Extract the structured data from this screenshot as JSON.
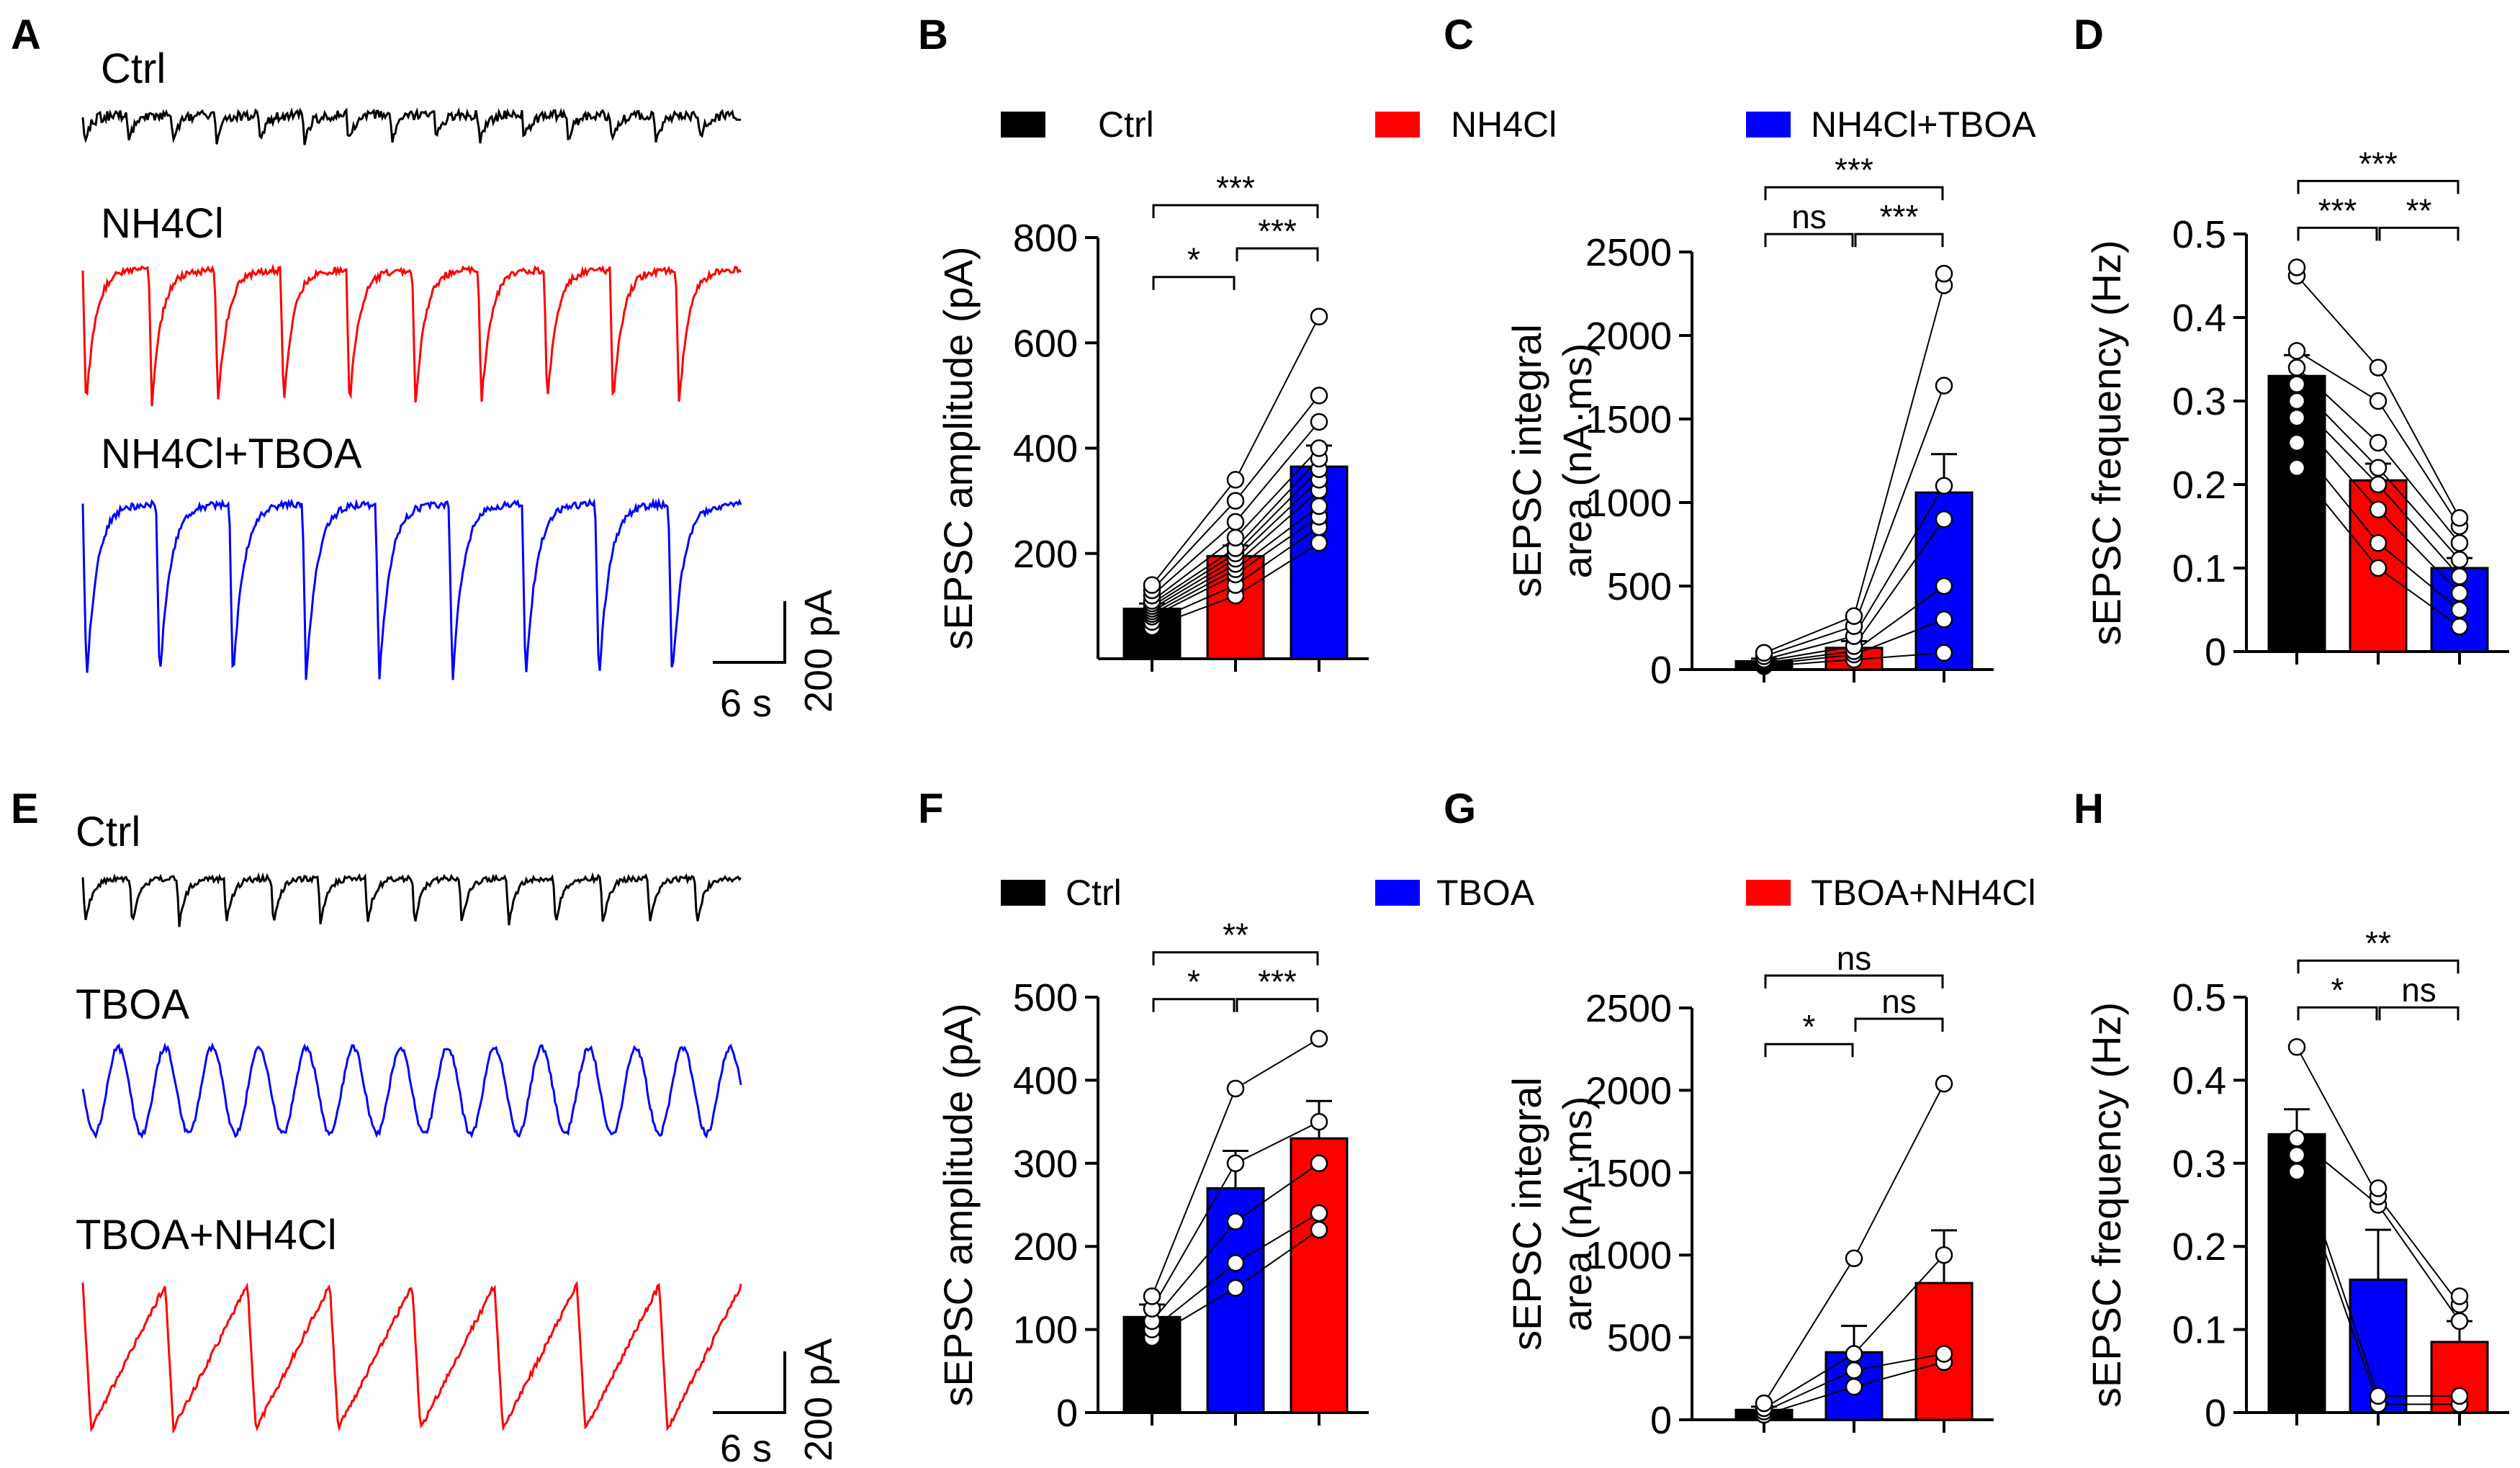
{
  "panel_labels": {
    "A": "A",
    "B": "B",
    "C": "C",
    "D": "D",
    "E": "E",
    "F": "F",
    "G": "G",
    "H": "H"
  },
  "colors": {
    "ctrl": "#000000",
    "nh4cl": "#ff0000",
    "tboa": "#0000ff"
  },
  "legend_top": [
    {
      "label": "Ctrl",
      "color": "#000000"
    },
    {
      "label": "NH4Cl",
      "color": "#ff0000"
    },
    {
      "label": "NH4Cl+TBOA",
      "color": "#0000ff"
    }
  ],
  "legend_bottom": [
    {
      "label": "Ctrl",
      "color": "#000000"
    },
    {
      "label": "TBOA",
      "color": "#0000ff"
    },
    {
      "label": "TBOA+NH4Cl",
      "color": "#ff0000"
    }
  ],
  "traces_top": {
    "labels": [
      "Ctrl",
      "NH4Cl",
      "NH4Cl+TBOA"
    ],
    "colors": [
      "#000000",
      "#ff0000",
      "#0000ff"
    ],
    "scale_time": "6 s",
    "scale_current": "200 pA"
  },
  "traces_bottom": {
    "labels": [
      "Ctrl",
      "TBOA",
      "TBOA+NH4Cl"
    ],
    "colors": [
      "#000000",
      "#0000ff",
      "#ff0000"
    ],
    "scale_time": "6 s",
    "scale_current": "200 pA"
  },
  "chart_data": [
    {
      "id": "B",
      "type": "bar",
      "ylabel": "sEPSC amplitude (pA)",
      "ylim": [
        0,
        800
      ],
      "yticks": [
        200,
        400,
        600,
        800
      ],
      "categories": [
        "Ctrl",
        "NH4Cl",
        "NH4Cl+TBOA"
      ],
      "values": [
        95,
        195,
        365
      ],
      "errors": [
        10,
        20,
        40
      ],
      "colors": [
        "#000000",
        "#ff0000",
        "#0000ff"
      ],
      "points": [
        [
          60,
          70,
          80,
          85,
          90,
          95,
          100,
          105,
          110,
          120,
          130,
          140
        ],
        [
          120,
          140,
          160,
          170,
          180,
          190,
          200,
          210,
          230,
          260,
          300,
          340
        ],
        [
          220,
          250,
          270,
          290,
          320,
          340,
          360,
          380,
          400,
          450,
          500,
          650
        ]
      ],
      "sig": [
        {
          "pair": [
            0,
            1
          ],
          "label": "*"
        },
        {
          "pair": [
            1,
            2
          ],
          "label": "***"
        },
        {
          "pair": [
            0,
            2
          ],
          "label": "***"
        }
      ]
    },
    {
      "id": "C",
      "type": "bar",
      "ylabel": "sEPSC integral area (nA·ms)",
      "ylim": [
        0,
        2500
      ],
      "yticks": [
        0,
        500,
        1000,
        1500,
        2000,
        2500
      ],
      "categories": [
        "Ctrl",
        "NH4Cl",
        "NH4Cl+TBOA"
      ],
      "values": [
        50,
        130,
        1060
      ],
      "errors": [
        15,
        40,
        230
      ],
      "colors": [
        "#000000",
        "#ff0000",
        "#0000ff"
      ],
      "points": [
        [
          20,
          30,
          40,
          50,
          60,
          80,
          100
        ],
        [
          60,
          90,
          110,
          140,
          200,
          260,
          320
        ],
        [
          100,
          300,
          500,
          900,
          1100,
          1700,
          2300,
          2370
        ]
      ],
      "sig": [
        {
          "pair": [
            0,
            1
          ],
          "label": "ns"
        },
        {
          "pair": [
            1,
            2
          ],
          "label": "***"
        },
        {
          "pair": [
            0,
            2
          ],
          "label": "***"
        }
      ]
    },
    {
      "id": "D",
      "type": "bar",
      "ylabel": "sEPSC frequency (Hz)",
      "ylim": [
        0,
        0.5
      ],
      "yticks": [
        0.0,
        0.1,
        0.2,
        0.3,
        0.4,
        0.5
      ],
      "categories": [
        "Ctrl",
        "NH4Cl",
        "NH4Cl+TBOA"
      ],
      "values": [
        0.33,
        0.205,
        0.1
      ],
      "errors": [
        0.025,
        0.02,
        0.012
      ],
      "colors": [
        "#000000",
        "#ff0000",
        "#0000ff"
      ],
      "points": [
        [
          0.22,
          0.25,
          0.28,
          0.3,
          0.32,
          0.34,
          0.36,
          0.45,
          0.46
        ],
        [
          0.1,
          0.13,
          0.17,
          0.2,
          0.22,
          0.25,
          0.3,
          0.34
        ],
        [
          0.03,
          0.05,
          0.07,
          0.09,
          0.11,
          0.13,
          0.15,
          0.16
        ]
      ],
      "sig": [
        {
          "pair": [
            0,
            1
          ],
          "label": "***"
        },
        {
          "pair": [
            1,
            2
          ],
          "label": "**"
        },
        {
          "pair": [
            0,
            2
          ],
          "label": "***"
        }
      ]
    },
    {
      "id": "F",
      "type": "bar",
      "ylabel": "sEPSC amplitude (pA)",
      "ylim": [
        0,
        500
      ],
      "yticks": [
        0,
        100,
        200,
        300,
        400,
        500
      ],
      "categories": [
        "Ctrl",
        "TBOA",
        "TBOA+NH4Cl"
      ],
      "values": [
        115,
        270,
        330
      ],
      "errors": [
        15,
        45,
        45
      ],
      "colors": [
        "#000000",
        "#0000ff",
        "#ff0000"
      ],
      "points": [
        [
          90,
          100,
          110,
          125,
          140
        ],
        [
          150,
          180,
          230,
          300,
          390
        ],
        [
          220,
          240,
          300,
          350,
          450
        ]
      ],
      "sig": [
        {
          "pair": [
            0,
            1
          ],
          "label": "*"
        },
        {
          "pair": [
            1,
            2
          ],
          "label": "***"
        },
        {
          "pair": [
            0,
            2
          ],
          "label": "**"
        }
      ]
    },
    {
      "id": "G",
      "type": "bar",
      "ylabel": "sEPSC integral area (nA·ms)",
      "ylim": [
        0,
        2500
      ],
      "yticks": [
        0,
        500,
        1000,
        1500,
        2000,
        2500
      ],
      "categories": [
        "Ctrl",
        "TBOA",
        "TBOA+NH4Cl"
      ],
      "values": [
        60,
        410,
        830
      ],
      "errors": [
        20,
        160,
        320
      ],
      "colors": [
        "#000000",
        "#0000ff",
        "#ff0000"
      ],
      "points": [
        [
          30,
          50,
          70,
          100
        ],
        [
          200,
          300,
          400,
          980
        ],
        [
          350,
          400,
          1000,
          2040
        ]
      ],
      "sig": [
        {
          "pair": [
            0,
            1
          ],
          "label": "*"
        },
        {
          "pair": [
            1,
            2
          ],
          "label": "ns"
        },
        {
          "pair": [
            0,
            2
          ],
          "label": "ns"
        }
      ]
    },
    {
      "id": "H",
      "type": "bar",
      "ylabel": "sEPSC frequency (Hz)",
      "ylim": [
        0,
        0.5
      ],
      "yticks": [
        0.0,
        0.1,
        0.2,
        0.3,
        0.4,
        0.5
      ],
      "categories": [
        "Ctrl",
        "TBOA",
        "TBOA+NH4Cl"
      ],
      "values": [
        0.335,
        0.16,
        0.085
      ],
      "errors": [
        0.03,
        0.06,
        0.025
      ],
      "colors": [
        "#000000",
        "#0000ff",
        "#ff0000"
      ],
      "points": [
        [
          0.29,
          0.31,
          0.33,
          0.44
        ],
        [
          0.01,
          0.02,
          0.25,
          0.26,
          0.27
        ],
        [
          0.01,
          0.02,
          0.11,
          0.13,
          0.14
        ]
      ],
      "sig": [
        {
          "pair": [
            0,
            1
          ],
          "label": "*"
        },
        {
          "pair": [
            1,
            2
          ],
          "label": "ns"
        },
        {
          "pair": [
            0,
            2
          ],
          "label": "**"
        }
      ]
    }
  ]
}
